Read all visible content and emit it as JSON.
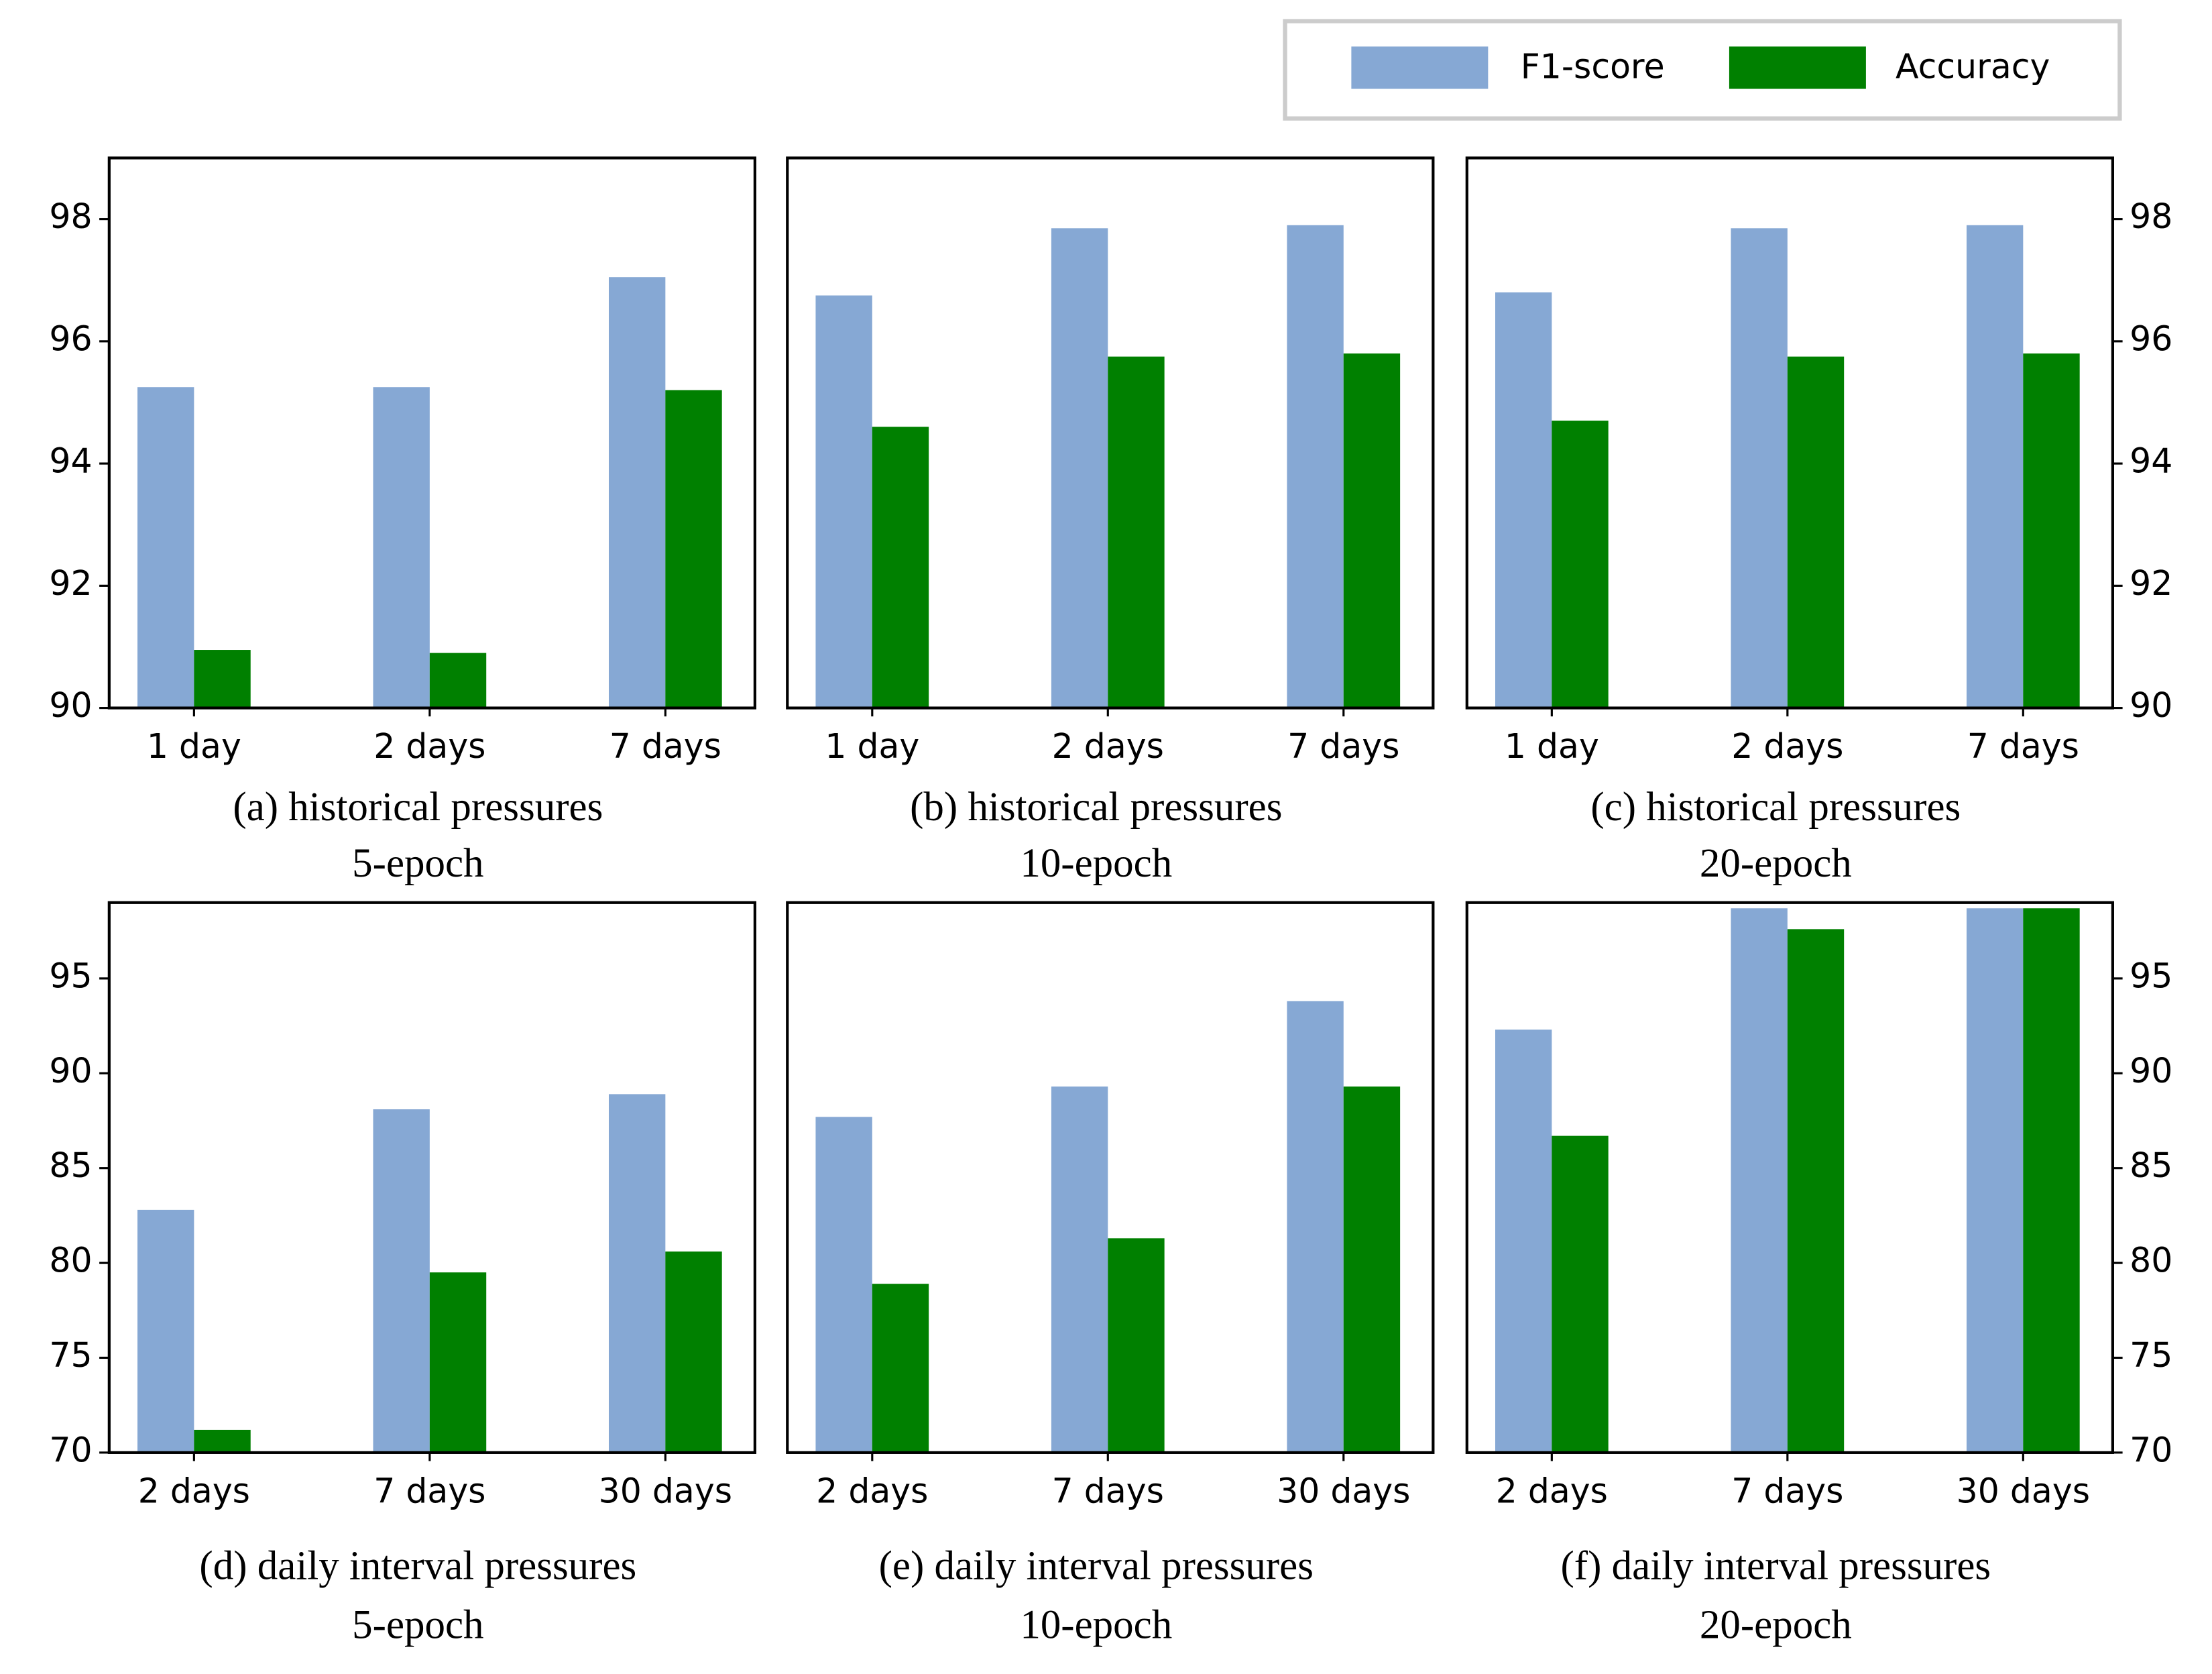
{
  "legend": [
    {
      "name": "F1-score",
      "color": "#86a8d4"
    },
    {
      "name": "Accuracy",
      "color": "#008000"
    }
  ],
  "chart_data": [
    {
      "type": "bar",
      "title": "(a) historical pressures",
      "subtitle": "5-epoch",
      "categories": [
        "1 day",
        "2 days",
        "7 days"
      ],
      "series": [
        {
          "values": [
            95.25,
            95.25,
            97.05
          ]
        },
        {
          "values": [
            90.95,
            90.9,
            95.2
          ]
        }
      ],
      "ylim": [
        90,
        99
      ],
      "yticks": [
        90,
        92,
        94,
        96,
        98
      ],
      "y_axis_side": "left"
    },
    {
      "type": "bar",
      "title": "(b) historical pressures",
      "subtitle": "10-epoch",
      "categories": [
        "1 day",
        "2 days",
        "7 days"
      ],
      "series": [
        {
          "values": [
            96.75,
            97.85,
            97.9
          ]
        },
        {
          "values": [
            94.6,
            95.75,
            95.8
          ]
        }
      ],
      "ylim": [
        90,
        99
      ],
      "yticks": [],
      "y_axis_side": "none"
    },
    {
      "type": "bar",
      "title": "(c) historical pressures",
      "subtitle": "20-epoch",
      "categories": [
        "1 day",
        "2 days",
        "7 days"
      ],
      "series": [
        {
          "values": [
            96.8,
            97.85,
            97.9
          ]
        },
        {
          "values": [
            94.7,
            95.75,
            95.8
          ]
        }
      ],
      "ylim": [
        90,
        99
      ],
      "yticks": [
        90,
        92,
        94,
        96,
        98
      ],
      "y_axis_side": "right"
    },
    {
      "type": "bar",
      "title": "(d) daily interval pressures",
      "subtitle": "5-epoch",
      "categories": [
        "2 days",
        "7 days",
        "30 days"
      ],
      "series": [
        {
          "values": [
            82.8,
            88.1,
            88.9
          ]
        },
        {
          "values": [
            71.2,
            79.5,
            80.6
          ]
        }
      ],
      "ylim": [
        70,
        99
      ],
      "yticks": [
        70,
        75,
        80,
        85,
        90,
        95
      ],
      "y_axis_side": "left"
    },
    {
      "type": "bar",
      "title": "(e) daily interval pressures",
      "subtitle": "10-epoch",
      "categories": [
        "2 days",
        "7 days",
        "30 days"
      ],
      "series": [
        {
          "values": [
            87.7,
            89.3,
            93.8
          ]
        },
        {
          "values": [
            78.9,
            81.3,
            89.3
          ]
        }
      ],
      "ylim": [
        70,
        99
      ],
      "yticks": [],
      "y_axis_side": "none"
    },
    {
      "type": "bar",
      "title": "(f) daily interval pressures",
      "subtitle": "20-epoch",
      "categories": [
        "2 days",
        "7 days",
        "30 days"
      ],
      "series": [
        {
          "values": [
            92.3,
            98.7,
            98.7
          ]
        },
        {
          "values": [
            86.7,
            97.6,
            98.7
          ]
        }
      ],
      "ylim": [
        70,
        99
      ],
      "yticks": [
        70,
        75,
        80,
        85,
        90,
        95
      ],
      "y_axis_side": "right"
    }
  ]
}
